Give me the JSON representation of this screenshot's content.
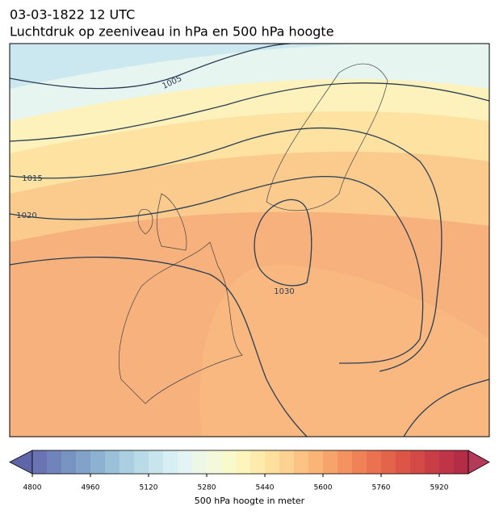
{
  "title": "03-03-1822 12 UTC",
  "subtitle": "Luchtdruk op zeeniveau in hPa en 500 hPa hoogte",
  "contour_labels": [
    "1005",
    "1015",
    "1020",
    "1030"
  ],
  "colorbar": {
    "label": "500 hPa hoogte in meter",
    "lim": [
      4800,
      6000
    ],
    "ticks": [
      4800,
      4960,
      5120,
      5280,
      5440,
      5600,
      5760,
      5920
    ],
    "under_color": "#5f66a8",
    "over_color": "#b43a5a",
    "colors": [
      "#6b74b3",
      "#7083ba",
      "#7892c1",
      "#82a2c9",
      "#8db2d1",
      "#9ac1d8",
      "#a9cfe0",
      "#b8dbe7",
      "#c8e5ee",
      "#d7eef4",
      "#e3f4f3",
      "#ecf7e8",
      "#f3f9da",
      "#f9facb",
      "#fdf5bc",
      "#fdebad",
      "#fde09e",
      "#fcd290",
      "#fbc383",
      "#f9b476",
      "#f7a46b",
      "#f49360",
      "#f08257",
      "#eb7250",
      "#e4634b",
      "#dc5547",
      "#d34945",
      "#c93e45",
      "#bf3446",
      "#b52c47"
    ]
  }
}
